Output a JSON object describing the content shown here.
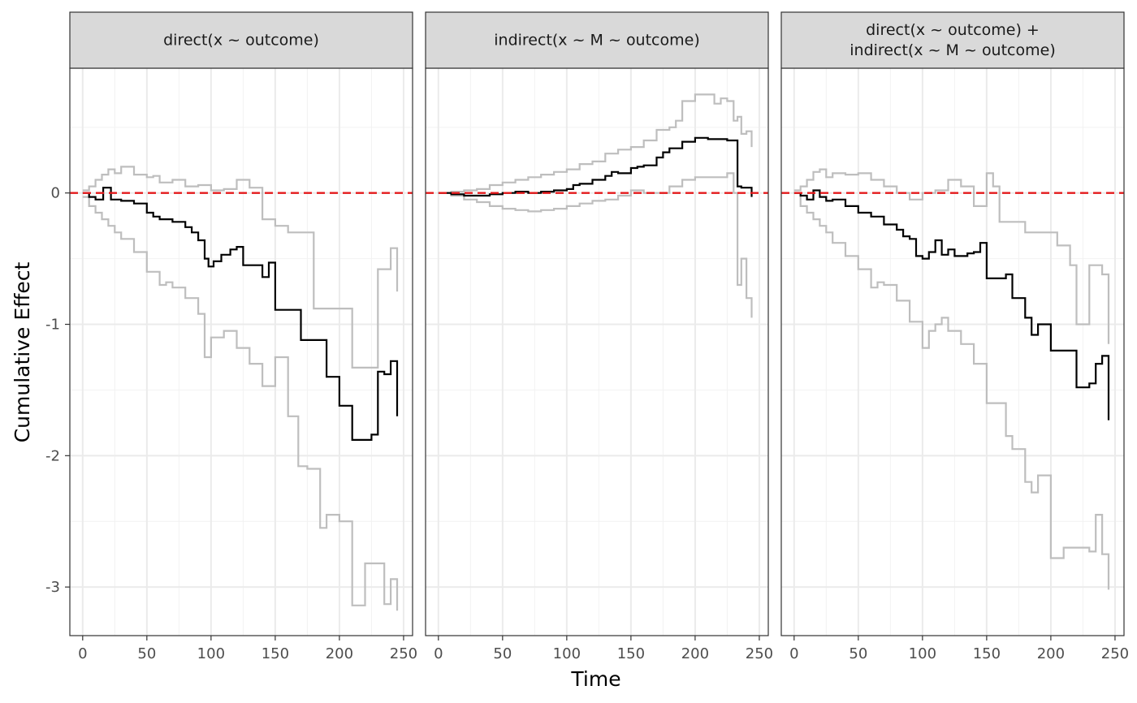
{
  "figure": {
    "xlabel": "Time",
    "ylabel": "Cumulative Effect"
  },
  "chart_data": [
    {
      "type": "line",
      "title": "direct(x ~ outcome)",
      "xlabel": "Time",
      "ylabel": "Cumulative Effect",
      "xlim": [
        -10,
        257
      ],
      "ylim": [
        -3.37,
        0.95
      ],
      "xticks": [
        0,
        50,
        100,
        150,
        200,
        250
      ],
      "yticks": [
        -3,
        -2,
        -1,
        0
      ],
      "grid": true,
      "reference_line": {
        "y": 0,
        "color": "#e41a1c",
        "style": "dashed"
      },
      "series": [
        {
          "role": "estimate",
          "color": "#000000",
          "x": [
            0,
            5,
            10,
            16,
            22,
            30,
            40,
            50,
            55,
            60,
            70,
            80,
            85,
            90,
            95,
            98,
            102,
            108,
            115,
            120,
            125,
            130,
            140,
            145,
            150,
            160,
            170,
            180,
            190,
            200,
            210,
            215,
            225,
            230,
            235,
            240,
            245
          ],
          "y": [
            0,
            -0.03,
            -0.05,
            0.04,
            -0.05,
            -0.06,
            -0.08,
            -0.15,
            -0.18,
            -0.2,
            -0.22,
            -0.26,
            -0.3,
            -0.36,
            -0.5,
            -0.56,
            -0.52,
            -0.47,
            -0.43,
            -0.41,
            -0.55,
            -0.55,
            -0.64,
            -0.53,
            -0.89,
            -0.89,
            -1.12,
            -1.12,
            -1.4,
            -1.62,
            -1.88,
            -1.88,
            -1.84,
            -1.36,
            -1.38,
            -1.28,
            -1.7
          ]
        },
        {
          "role": "upper",
          "color": "#bebebe",
          "x": [
            0,
            5,
            10,
            15,
            20,
            25,
            30,
            40,
            50,
            55,
            60,
            70,
            80,
            90,
            100,
            110,
            120,
            130,
            140,
            150,
            160,
            170,
            180,
            190,
            200,
            210,
            220,
            230,
            240,
            245
          ],
          "y": [
            0.02,
            0.05,
            0.1,
            0.14,
            0.18,
            0.15,
            0.2,
            0.14,
            0.12,
            0.13,
            0.08,
            0.1,
            0.05,
            0.06,
            0.02,
            0.03,
            0.1,
            0.04,
            -0.2,
            -0.25,
            -0.3,
            -0.3,
            -0.88,
            -0.88,
            -0.88,
            -1.33,
            -1.33,
            -0.58,
            -0.42,
            -0.75
          ]
        },
        {
          "role": "lower",
          "color": "#bebebe",
          "x": [
            0,
            5,
            10,
            15,
            20,
            25,
            30,
            40,
            50,
            60,
            65,
            70,
            80,
            90,
            95,
            100,
            110,
            120,
            130,
            140,
            150,
            160,
            168,
            175,
            185,
            190,
            200,
            210,
            220,
            230,
            235,
            240,
            245
          ],
          "y": [
            -0.03,
            -0.1,
            -0.15,
            -0.2,
            -0.25,
            -0.3,
            -0.35,
            -0.45,
            -0.6,
            -0.7,
            -0.68,
            -0.72,
            -0.8,
            -0.92,
            -1.25,
            -1.1,
            -1.05,
            -1.18,
            -1.3,
            -1.47,
            -1.25,
            -1.7,
            -2.08,
            -2.1,
            -2.55,
            -2.45,
            -2.5,
            -3.14,
            -2.82,
            -2.82,
            -3.13,
            -2.94,
            -3.18
          ]
        }
      ]
    },
    {
      "type": "line",
      "title": "indirect(x ~ M ~ outcome)",
      "xlabel": "Time",
      "ylabel": "Cumulative Effect",
      "xlim": [
        -10,
        257
      ],
      "ylim": [
        -3.37,
        0.95
      ],
      "xticks": [
        0,
        50,
        100,
        150,
        200,
        250
      ],
      "yticks": [
        -3,
        -2,
        -1,
        0
      ],
      "grid": true,
      "reference_line": {
        "y": 0,
        "color": "#e41a1c",
        "style": "dashed"
      },
      "series": [
        {
          "role": "estimate",
          "color": "#000000",
          "x": [
            0,
            10,
            20,
            30,
            40,
            50,
            60,
            70,
            80,
            90,
            100,
            105,
            110,
            120,
            130,
            135,
            140,
            150,
            155,
            160,
            170,
            175,
            180,
            190,
            200,
            210,
            215,
            220,
            225,
            230,
            233,
            236,
            240,
            244
          ],
          "y": [
            0,
            -0.01,
            -0.02,
            -0.02,
            -0.01,
            0,
            0.01,
            0,
            0.01,
            0.02,
            0.03,
            0.06,
            0.07,
            0.1,
            0.13,
            0.16,
            0.15,
            0.19,
            0.2,
            0.21,
            0.27,
            0.31,
            0.34,
            0.39,
            0.42,
            0.41,
            0.41,
            0.41,
            0.4,
            0.4,
            0.05,
            0.04,
            0.04,
            -0.03
          ]
        },
        {
          "role": "upper",
          "color": "#bebebe",
          "x": [
            0,
            10,
            20,
            30,
            40,
            50,
            60,
            70,
            80,
            90,
            100,
            110,
            120,
            130,
            140,
            150,
            160,
            170,
            180,
            185,
            190,
            200,
            210,
            215,
            220,
            225,
            230,
            233,
            236,
            240,
            244
          ],
          "y": [
            0,
            0.01,
            0.02,
            0.03,
            0.06,
            0.08,
            0.1,
            0.12,
            0.14,
            0.16,
            0.18,
            0.22,
            0.24,
            0.3,
            0.33,
            0.35,
            0.4,
            0.48,
            0.5,
            0.55,
            0.7,
            0.75,
            0.75,
            0.68,
            0.72,
            0.7,
            0.55,
            0.58,
            0.45,
            0.47,
            0.35
          ]
        },
        {
          "role": "lower",
          "color": "#bebebe",
          "x": [
            0,
            10,
            20,
            30,
            40,
            50,
            60,
            70,
            80,
            90,
            100,
            110,
            120,
            130,
            140,
            150,
            160,
            170,
            180,
            190,
            200,
            210,
            220,
            225,
            230,
            233,
            236,
            240,
            244
          ],
          "y": [
            0,
            -0.02,
            -0.05,
            -0.07,
            -0.1,
            -0.12,
            -0.13,
            -0.14,
            -0.13,
            -0.12,
            -0.1,
            -0.08,
            -0.06,
            -0.05,
            -0.02,
            0.02,
            0,
            0,
            0.05,
            0.1,
            0.12,
            0.12,
            0.12,
            0.15,
            0,
            -0.7,
            -0.5,
            -0.8,
            -0.95
          ]
        }
      ]
    },
    {
      "type": "line",
      "title": "direct(x ~ outcome) +\nindirect(x ~ M ~ outcome)",
      "xlabel": "Time",
      "ylabel": "Cumulative Effect",
      "xlim": [
        -10,
        257
      ],
      "ylim": [
        -3.37,
        0.95
      ],
      "xticks": [
        0,
        50,
        100,
        150,
        200,
        250
      ],
      "yticks": [
        -3,
        -2,
        -1,
        0
      ],
      "grid": true,
      "reference_line": {
        "y": 0,
        "color": "#e41a1c",
        "style": "dashed"
      },
      "series": [
        {
          "role": "estimate",
          "color": "#000000",
          "x": [
            0,
            5,
            10,
            15,
            20,
            25,
            30,
            40,
            50,
            60,
            70,
            80,
            85,
            90,
            95,
            100,
            105,
            110,
            115,
            120,
            125,
            130,
            135,
            140,
            145,
            150,
            160,
            165,
            170,
            180,
            185,
            190,
            200,
            210,
            220,
            230,
            235,
            240,
            245
          ],
          "y": [
            0,
            -0.02,
            -0.05,
            0.02,
            -0.03,
            -0.06,
            -0.05,
            -0.1,
            -0.15,
            -0.18,
            -0.24,
            -0.28,
            -0.33,
            -0.35,
            -0.48,
            -0.5,
            -0.45,
            -0.36,
            -0.47,
            -0.43,
            -0.48,
            -0.48,
            -0.46,
            -0.45,
            -0.38,
            -0.65,
            -0.65,
            -0.62,
            -0.8,
            -0.95,
            -1.08,
            -1.0,
            -1.2,
            -1.2,
            -1.48,
            -1.45,
            -1.3,
            -1.24,
            -1.73
          ]
        },
        {
          "role": "upper",
          "color": "#bebebe",
          "x": [
            0,
            5,
            10,
            15,
            20,
            25,
            30,
            40,
            50,
            60,
            70,
            80,
            90,
            100,
            110,
            120,
            130,
            140,
            150,
            155,
            160,
            170,
            180,
            190,
            200,
            205,
            215,
            220,
            230,
            240,
            245
          ],
          "y": [
            0.02,
            0.05,
            0.1,
            0.16,
            0.18,
            0.12,
            0.15,
            0.14,
            0.15,
            0.1,
            0.05,
            0,
            -0.05,
            0,
            0.02,
            0.1,
            0.05,
            -0.1,
            0.15,
            0.05,
            -0.22,
            -0.22,
            -0.3,
            -0.3,
            -0.3,
            -0.4,
            -0.55,
            -1.0,
            -0.55,
            -0.62,
            -1.15
          ]
        },
        {
          "role": "lower",
          "color": "#bebebe",
          "x": [
            0,
            5,
            10,
            15,
            20,
            25,
            30,
            40,
            50,
            60,
            65,
            70,
            80,
            90,
            100,
            105,
            110,
            115,
            120,
            130,
            140,
            150,
            160,
            165,
            170,
            180,
            185,
            190,
            200,
            210,
            220,
            230,
            235,
            240,
            245
          ],
          "y": [
            0,
            -0.1,
            -0.15,
            -0.2,
            -0.25,
            -0.3,
            -0.38,
            -0.48,
            -0.58,
            -0.72,
            -0.68,
            -0.7,
            -0.82,
            -0.98,
            -1.18,
            -1.05,
            -1.0,
            -0.95,
            -1.05,
            -1.15,
            -1.3,
            -1.6,
            -1.6,
            -1.85,
            -1.95,
            -2.2,
            -2.28,
            -2.15,
            -2.78,
            -2.7,
            -2.7,
            -2.73,
            -2.45,
            -2.75,
            -3.02
          ]
        }
      ]
    }
  ]
}
